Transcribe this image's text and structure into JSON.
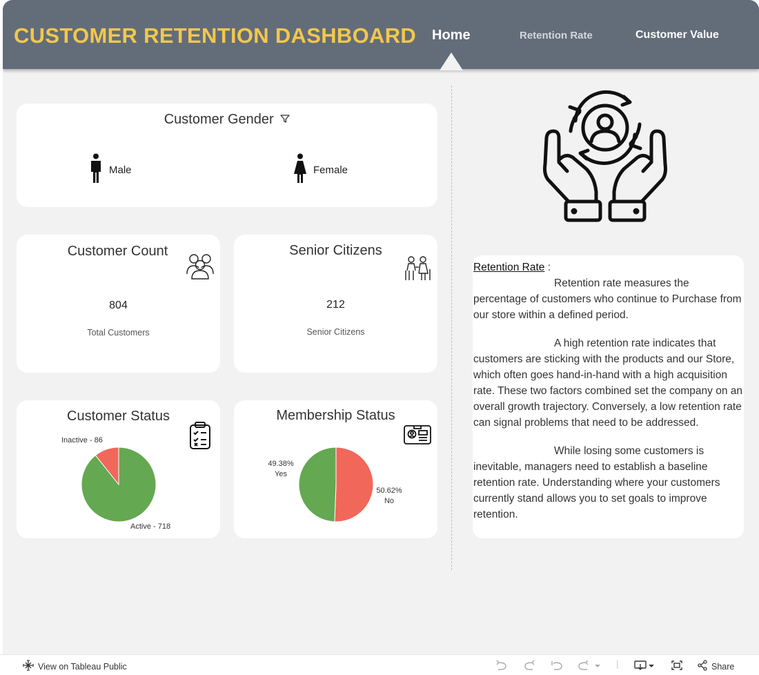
{
  "header": {
    "title": "CUSTOMER RETENTION DASHBOARD",
    "nav": {
      "home": "Home",
      "retention_rate": "Retention Rate",
      "customer_value": "Customer Value"
    }
  },
  "gender": {
    "title": "Customer Gender",
    "male": "Male",
    "female": "Female"
  },
  "count": {
    "title": "Customer Count",
    "value": "804",
    "label": "Total Customers"
  },
  "senior": {
    "title": "Senior Citizens",
    "value": "212",
    "label": "Senior Citizens"
  },
  "status": {
    "title": "Customer Status",
    "inactive_label": "Inactive - 86",
    "active_label": "Active - 718"
  },
  "membership": {
    "title": "Membership Status",
    "yes_pct": "49.38%",
    "yes_label": "Yes",
    "no_pct": "50.62%",
    "no_label": "No"
  },
  "chart_data": [
    {
      "type": "pie",
      "title": "Customer Status",
      "categories": [
        "Active",
        "Inactive"
      ],
      "values": [
        718,
        86
      ],
      "colors": [
        "#64a852",
        "#f1675a"
      ]
    },
    {
      "type": "pie",
      "title": "Membership Status",
      "categories": [
        "No",
        "Yes"
      ],
      "values": [
        50.62,
        49.38
      ],
      "colors": [
        "#f1675a",
        "#64a852"
      ]
    }
  ],
  "info": {
    "heading": "Retention Rate",
    "colon": " :",
    "p1": "Retention rate measures the percentage of customers who continue to Purchase from our store within a defined period.",
    "p2": "A high retention rate indicates that customers are sticking with the products and our Store, which often goes hand-in-hand with a high acquisition rate. These two factors combined set the company on an overall growth trajectory. Conversely, a low retention rate can signal problems that need to be addressed.",
    "p3": "While losing some customers is inevitable, managers need to establish a baseline retention rate. Understanding where your customers currently stand allows you to set goals to improve retention."
  },
  "footer": {
    "view_label": "View on Tableau Public",
    "share_label": "Share"
  },
  "colors": {
    "header_bg": "#636d7a",
    "title": "#f2c84b",
    "green": "#64a852",
    "red": "#f1675a",
    "dash_bg": "#f2f2f2"
  },
  "icons": [
    "filter-icon",
    "male-icon",
    "female-icon",
    "group-icon",
    "elderly-couple-icon",
    "checklist-icon",
    "id-card-icon",
    "retention-hands-icon",
    "tableau-icon",
    "undo-icon",
    "redo-icon",
    "revert-icon",
    "refresh-icon",
    "download-icon",
    "fullscreen-icon",
    "share-icon"
  ]
}
